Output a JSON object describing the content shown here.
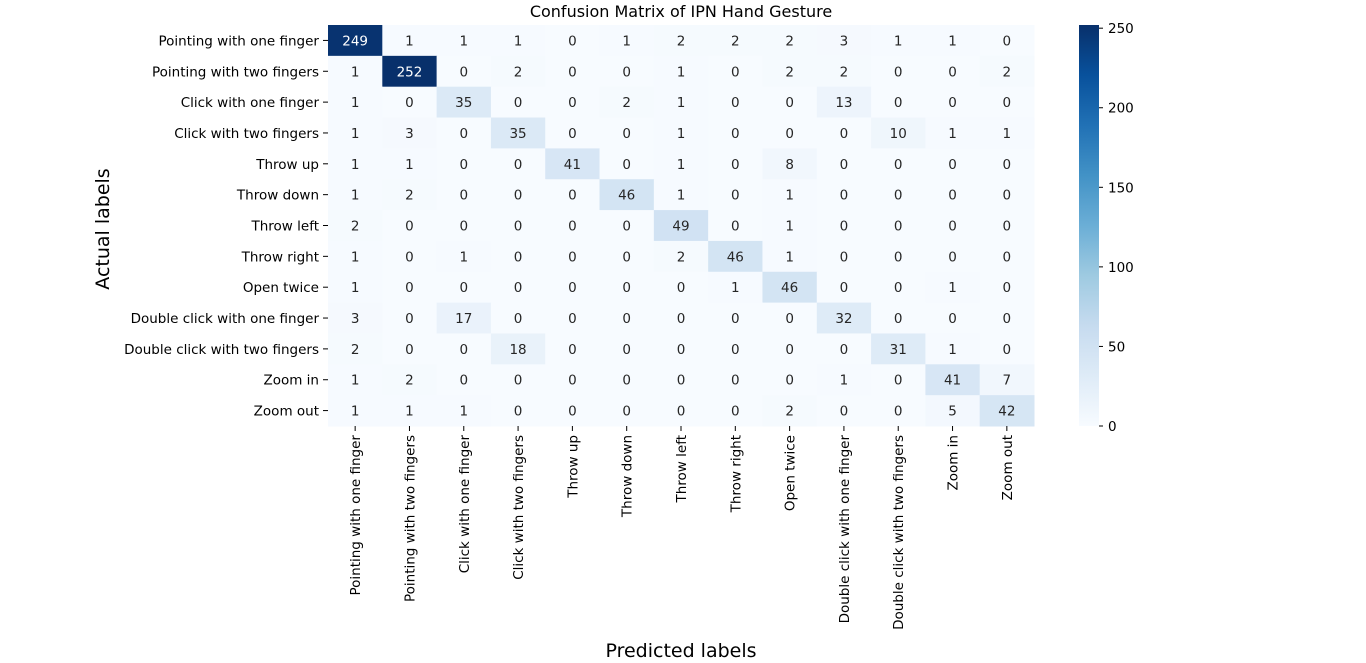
{
  "chart_data": {
    "type": "heatmap",
    "title": "Confusion Matrix of IPN Hand Gesture",
    "xlabel": "Predicted labels",
    "ylabel": "Actual labels",
    "row_labels": [
      "Pointing with one finger",
      "Pointing with two fingers",
      "Click with one finger",
      "Click with two fingers",
      "Throw up",
      "Throw down",
      "Throw left",
      "Throw right",
      "Open twice",
      "Double click with one finger",
      "Double click with two fingers",
      "Zoom in",
      "Zoom out"
    ],
    "col_labels": [
      "Pointing with one finger",
      "Pointing with two fingers",
      "Click with one finger",
      "Click with two fingers",
      "Throw up",
      "Throw down",
      "Throw left",
      "Throw right",
      "Open twice",
      "Double click with one finger",
      "Double click with two fingers",
      "Zoom in",
      "Zoom out"
    ],
    "values": [
      [
        249,
        1,
        1,
        1,
        0,
        1,
        2,
        2,
        2,
        3,
        1,
        1,
        0
      ],
      [
        1,
        252,
        0,
        2,
        0,
        0,
        1,
        0,
        2,
        2,
        0,
        0,
        2
      ],
      [
        1,
        0,
        35,
        0,
        0,
        2,
        1,
        0,
        0,
        13,
        0,
        0,
        0
      ],
      [
        1,
        3,
        0,
        35,
        0,
        0,
        1,
        0,
        0,
        0,
        10,
        1,
        1
      ],
      [
        1,
        1,
        0,
        0,
        41,
        0,
        1,
        0,
        8,
        0,
        0,
        0,
        0
      ],
      [
        1,
        2,
        0,
        0,
        0,
        46,
        1,
        0,
        1,
        0,
        0,
        0,
        0
      ],
      [
        2,
        0,
        0,
        0,
        0,
        0,
        49,
        0,
        1,
        0,
        0,
        0,
        0
      ],
      [
        1,
        0,
        1,
        0,
        0,
        0,
        2,
        46,
        1,
        0,
        0,
        0,
        0
      ],
      [
        1,
        0,
        0,
        0,
        0,
        0,
        0,
        1,
        46,
        0,
        0,
        1,
        0
      ],
      [
        3,
        0,
        17,
        0,
        0,
        0,
        0,
        0,
        0,
        32,
        0,
        0,
        0
      ],
      [
        2,
        0,
        0,
        18,
        0,
        0,
        0,
        0,
        0,
        0,
        31,
        1,
        0
      ],
      [
        1,
        2,
        0,
        0,
        0,
        0,
        0,
        0,
        0,
        1,
        0,
        41,
        7
      ],
      [
        1,
        1,
        1,
        0,
        0,
        0,
        0,
        0,
        2,
        0,
        0,
        5,
        42
      ]
    ],
    "colorbar": {
      "min": 0,
      "max": 252,
      "ticks": [
        0,
        50,
        100,
        150,
        200,
        250
      ]
    },
    "colormap": "Blues",
    "colors": {
      "low": "#f7fbff",
      "high": "#08306b"
    },
    "grid": false
  }
}
